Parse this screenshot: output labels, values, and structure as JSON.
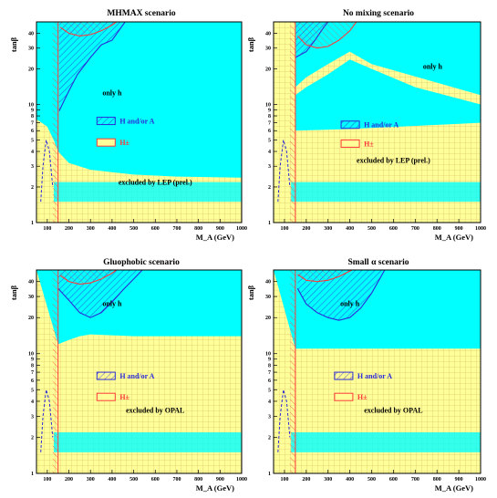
{
  "colors": {
    "cyan_region": "#00ffff",
    "yellow_region": "#ffff99",
    "grid_hatch": "#e0c870",
    "blue_hatch": "#2b2bd8",
    "red_hatch": "#ff3a3a",
    "text": "#000000"
  },
  "chart_data": [
    {
      "type": "area",
      "title": "MHMAX scenario",
      "xlabel": "M_A (GeV)",
      "ylabel": "tanβ",
      "xlim": [
        50,
        1000
      ],
      "ylim": [
        1,
        50
      ],
      "yscale": "log",
      "x_ticks": [
        "100",
        "200",
        "300",
        "400",
        "500",
        "600",
        "700",
        "800",
        "900",
        "1000"
      ],
      "y_ticks": [
        "1",
        "2",
        "3",
        "4",
        "5",
        "6",
        "7",
        "8",
        "9",
        "10",
        "20",
        "30",
        "40"
      ],
      "regions": [
        "only h",
        "excluded by LEP (prel.)"
      ],
      "legend": [
        {
          "label": "H and/or A",
          "color": "#2b2bd8"
        },
        {
          "label": "H±",
          "color": "#ff3a3a"
        }
      ],
      "boundaries": {
        "cyan_lower": [
          [
            50,
            7.5
          ],
          [
            100,
            6.5
          ],
          [
            130,
            5
          ],
          [
            150,
            4
          ],
          [
            200,
            3.2
          ],
          [
            300,
            2.8
          ],
          [
            500,
            2.55
          ],
          [
            700,
            2.45
          ],
          [
            1000,
            2.4
          ]
        ],
        "blue_excl_lower": [
          [
            155,
            8.8
          ],
          [
            175,
            10.5
          ],
          [
            200,
            13
          ],
          [
            240,
            18
          ],
          [
            300,
            25
          ],
          [
            350,
            32
          ],
          [
            400,
            35
          ],
          [
            460,
            50
          ]
        ],
        "red_excl_lower": [
          [
            160,
            45
          ],
          [
            200,
            40
          ],
          [
            250,
            38
          ],
          [
            300,
            39
          ],
          [
            350,
            42
          ],
          [
            400,
            47
          ],
          [
            420,
            50
          ]
        ]
      }
    },
    {
      "type": "area",
      "title": "No mixing scenario",
      "xlabel": "M_A (GeV)",
      "ylabel": "tanβ",
      "xlim": [
        50,
        1000
      ],
      "ylim": [
        1,
        50
      ],
      "yscale": "log",
      "x_ticks": [
        "100",
        "200",
        "300",
        "400",
        "500",
        "600",
        "700",
        "800",
        "900",
        "1000"
      ],
      "y_ticks": [
        "1",
        "2",
        "3",
        "4",
        "5",
        "6",
        "7",
        "8",
        "9",
        "10",
        "20",
        "30",
        "40"
      ],
      "regions": [
        "only h",
        "excluded by LEP (prel.)"
      ],
      "legend": [
        {
          "label": "H and/or A",
          "color": "#2b2bd8"
        },
        {
          "label": "H±",
          "color": "#ff3a3a"
        }
      ],
      "boundaries": {
        "cyan_region_top": [
          [
            150,
            12
          ],
          [
            200,
            14
          ],
          [
            300,
            18
          ],
          [
            400,
            24
          ],
          [
            500,
            20
          ],
          [
            700,
            14
          ],
          [
            1000,
            10
          ]
        ],
        "cyan_band": [
          [
            150,
            6
          ],
          [
            400,
            6.2
          ],
          [
            1000,
            7
          ]
        ],
        "blue_excl_lower": [
          [
            150,
            25
          ],
          [
            200,
            28
          ],
          [
            240,
            35
          ],
          [
            280,
            45
          ],
          [
            300,
            50
          ]
        ],
        "red_excl_lower": [
          [
            160,
            38
          ],
          [
            200,
            32
          ],
          [
            250,
            30
          ],
          [
            300,
            31
          ],
          [
            350,
            35
          ],
          [
            400,
            42
          ],
          [
            430,
            50
          ]
        ]
      }
    },
    {
      "type": "area",
      "title": "Gluophobic scenario",
      "xlabel": "M_A (GeV)",
      "ylabel": "tanβ",
      "xlim": [
        50,
        1000
      ],
      "ylim": [
        1,
        50
      ],
      "yscale": "log",
      "x_ticks": [
        "100",
        "200",
        "300",
        "400",
        "500",
        "600",
        "700",
        "800",
        "900",
        "1000"
      ],
      "y_ticks": [
        "1",
        "2",
        "3",
        "4",
        "5",
        "6",
        "7",
        "8",
        "9",
        "10",
        "20",
        "30",
        "40"
      ],
      "regions": [
        "only h",
        "excluded by OPAL"
      ],
      "legend": [
        {
          "label": "H and/or A",
          "color": "#2b2bd8"
        },
        {
          "label": "H±",
          "color": "#ff3a3a"
        }
      ],
      "boundaries": {
        "cyan_lower": [
          [
            150,
            12
          ],
          [
            200,
            13
          ],
          [
            250,
            14
          ],
          [
            300,
            14.5
          ],
          [
            500,
            14
          ],
          [
            1000,
            14
          ]
        ],
        "blue_excl_lower": [
          [
            150,
            35
          ],
          [
            200,
            28
          ],
          [
            250,
            22
          ],
          [
            300,
            20
          ],
          [
            350,
            22
          ],
          [
            400,
            27
          ],
          [
            450,
            34
          ],
          [
            500,
            42
          ],
          [
            540,
            50
          ]
        ],
        "red_excl_lower": [
          [
            160,
            45
          ],
          [
            200,
            40
          ],
          [
            250,
            38
          ],
          [
            300,
            39
          ],
          [
            350,
            42
          ],
          [
            400,
            47
          ],
          [
            420,
            50
          ]
        ]
      }
    },
    {
      "type": "area",
      "title": "Small α scenario",
      "xlabel": "M_A (GeV)",
      "ylabel": "tanβ",
      "xlim": [
        50,
        1000
      ],
      "ylim": [
        1,
        50
      ],
      "yscale": "log",
      "x_ticks": [
        "100",
        "200",
        "300",
        "400",
        "500",
        "600",
        "700",
        "800",
        "900",
        "1000"
      ],
      "y_ticks": [
        "1",
        "2",
        "3",
        "4",
        "5",
        "6",
        "7",
        "8",
        "9",
        "10",
        "20",
        "30",
        "40"
      ],
      "regions": [
        "only h",
        "excluded by OPAL"
      ],
      "legend": [
        {
          "label": "H and/or A",
          "color": "#2b2bd8"
        },
        {
          "label": "H±",
          "color": "#ff3a3a"
        }
      ],
      "boundaries": {
        "cyan_lower": [
          [
            150,
            11
          ],
          [
            200,
            11
          ],
          [
            300,
            11
          ],
          [
            500,
            11
          ],
          [
            1000,
            11
          ]
        ],
        "blue_excl_lower": [
          [
            160,
            35
          ],
          [
            200,
            26
          ],
          [
            250,
            22
          ],
          [
            300,
            20
          ],
          [
            350,
            19
          ],
          [
            400,
            20
          ],
          [
            450,
            24
          ],
          [
            500,
            32
          ],
          [
            560,
            50
          ]
        ],
        "red_excl_lower": [
          [
            160,
            46
          ],
          [
            200,
            41
          ],
          [
            250,
            40
          ],
          [
            300,
            41
          ],
          [
            350,
            44
          ],
          [
            400,
            49
          ],
          [
            410,
            50
          ]
        ]
      }
    }
  ]
}
